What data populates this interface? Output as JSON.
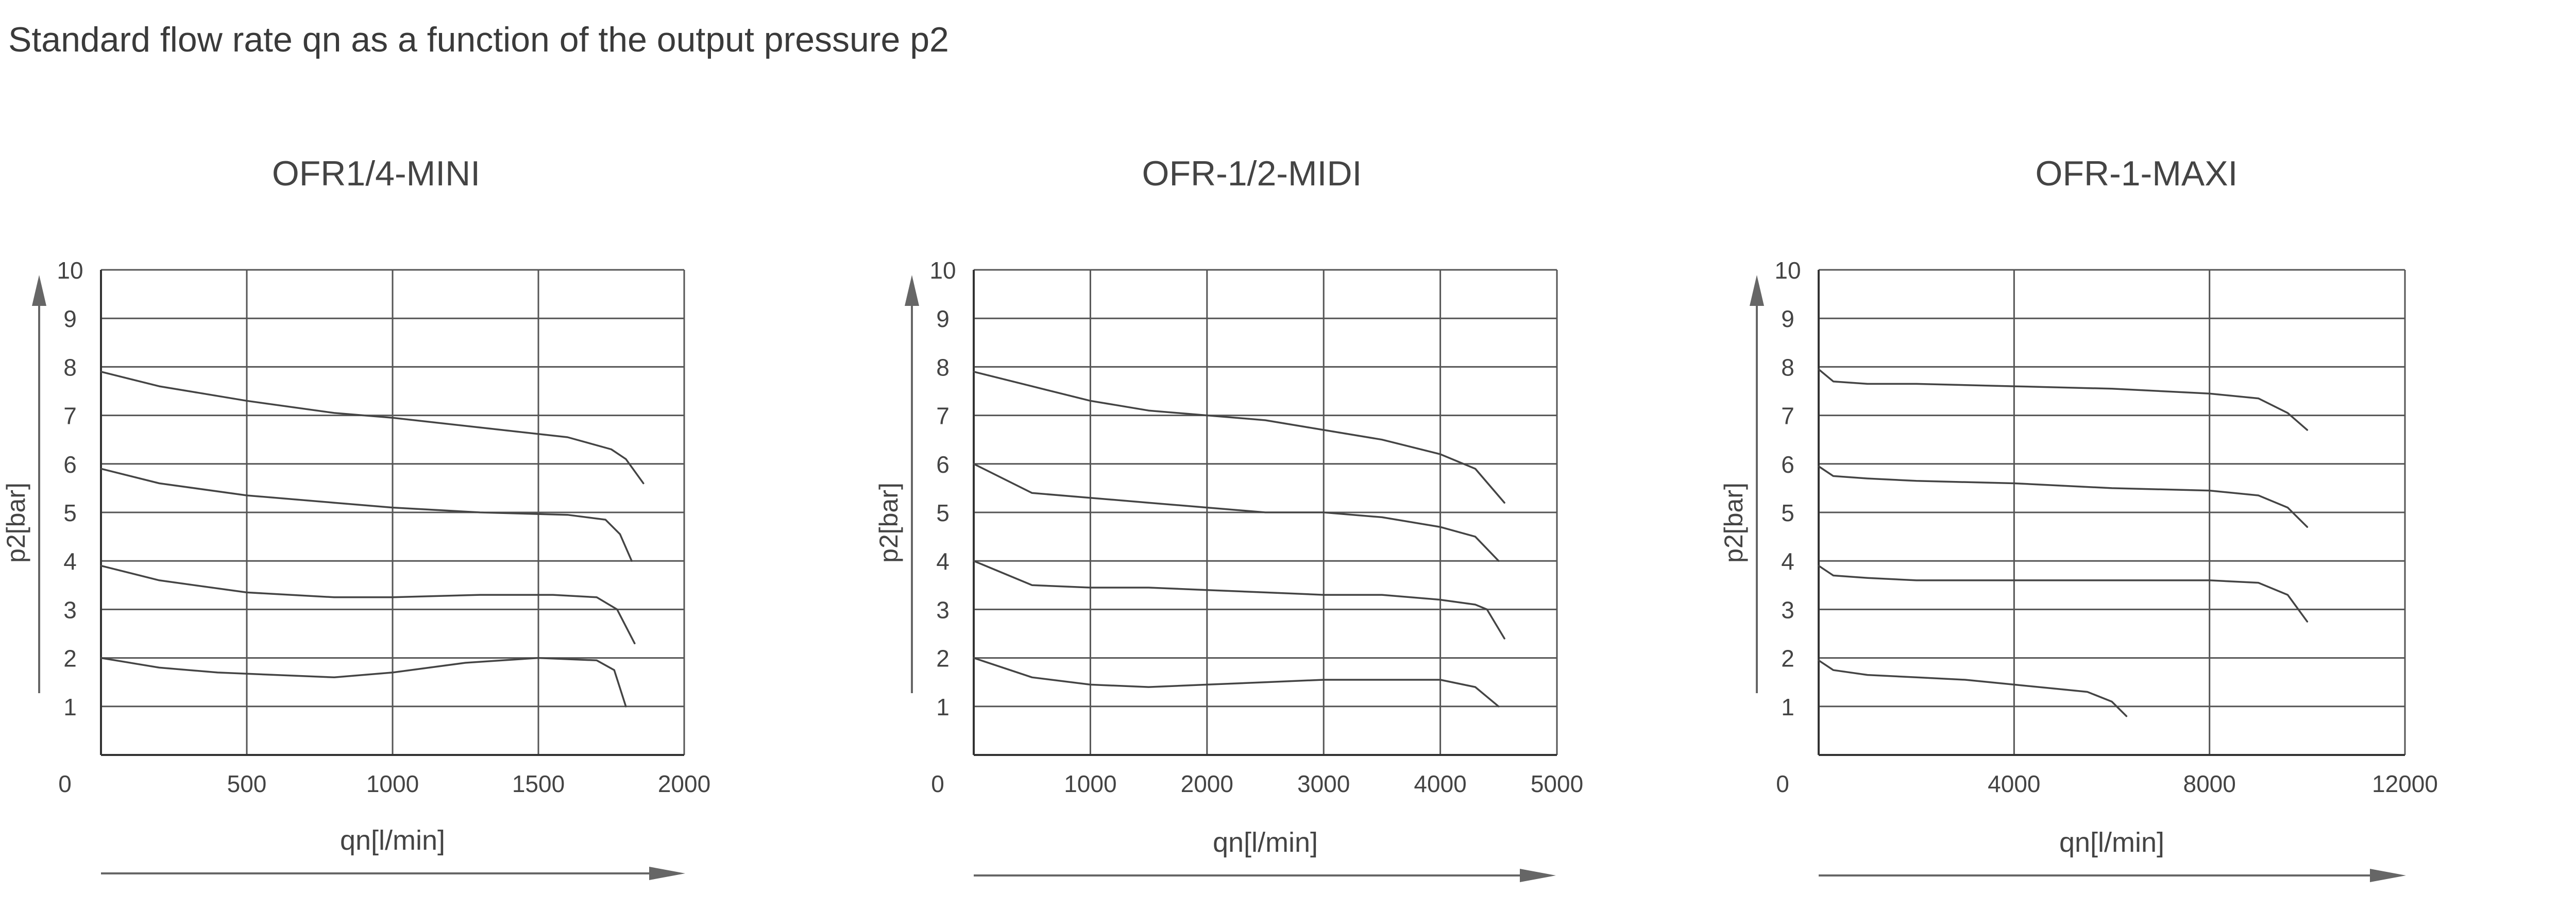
{
  "page": {
    "title": "Standard flow rate qn as a function of the output pressure p2"
  },
  "chart_data": [
    {
      "type": "line",
      "title": "OFR1/4-MINI",
      "xlabel": "qn[l/min]",
      "ylabel": "p2[bar]",
      "xlim": [
        0,
        2000
      ],
      "ylim": [
        0,
        10
      ],
      "x_ticks": [
        0,
        500,
        1000,
        1500,
        2000
      ],
      "x_tick_labels": [
        "0",
        "500",
        "1000",
        "1500",
        "2000"
      ],
      "y_ticks": [
        1,
        2,
        3,
        4,
        5,
        6,
        7,
        8,
        9,
        10
      ],
      "grid": true,
      "series": [
        {
          "x": [
            0,
            200,
            500,
            800,
            1000,
            1300,
            1600,
            1750,
            1800,
            1860
          ],
          "y": [
            7.9,
            7.6,
            7.3,
            7.05,
            6.95,
            6.75,
            6.55,
            6.3,
            6.1,
            5.6
          ]
        },
        {
          "x": [
            0,
            200,
            500,
            800,
            1000,
            1300,
            1600,
            1730,
            1780,
            1820
          ],
          "y": [
            5.9,
            5.6,
            5.35,
            5.2,
            5.1,
            5.0,
            4.95,
            4.85,
            4.55,
            4.0
          ]
        },
        {
          "x": [
            0,
            200,
            500,
            800,
            1000,
            1300,
            1550,
            1700,
            1770,
            1830
          ],
          "y": [
            3.9,
            3.6,
            3.35,
            3.25,
            3.25,
            3.3,
            3.3,
            3.25,
            3.0,
            2.3
          ]
        },
        {
          "x": [
            0,
            200,
            400,
            600,
            800,
            1000,
            1250,
            1500,
            1700,
            1760,
            1800
          ],
          "y": [
            2.0,
            1.8,
            1.7,
            1.65,
            1.6,
            1.7,
            1.9,
            2.0,
            1.95,
            1.75,
            1.0
          ]
        }
      ]
    },
    {
      "type": "line",
      "title": "OFR-1/2-MIDI",
      "xlabel": "qn[l/min]",
      "ylabel": "p2[bar]",
      "xlim": [
        0,
        5000
      ],
      "ylim": [
        0,
        10
      ],
      "x_ticks": [
        0,
        1000,
        2000,
        3000,
        4000,
        5000
      ],
      "x_tick_labels": [
        "0",
        "1000",
        "2000",
        "3000",
        "4000",
        "5000"
      ],
      "y_ticks": [
        1,
        2,
        3,
        4,
        5,
        6,
        7,
        8,
        9,
        10
      ],
      "grid": true,
      "series": [
        {
          "x": [
            0,
            500,
            1000,
            1500,
            2000,
            2500,
            3000,
            3500,
            4000,
            4300,
            4550
          ],
          "y": [
            7.9,
            7.6,
            7.3,
            7.1,
            7.0,
            6.9,
            6.7,
            6.5,
            6.2,
            5.9,
            5.2
          ]
        },
        {
          "x": [
            0,
            500,
            1000,
            1500,
            2000,
            2500,
            3000,
            3500,
            4000,
            4300,
            4500
          ],
          "y": [
            6.0,
            5.4,
            5.3,
            5.2,
            5.1,
            5.0,
            5.0,
            4.9,
            4.7,
            4.5,
            4.0
          ]
        },
        {
          "x": [
            0,
            500,
            1000,
            1500,
            2000,
            2500,
            3000,
            3500,
            4000,
            4300,
            4400,
            4550
          ],
          "y": [
            4.0,
            3.5,
            3.45,
            3.45,
            3.4,
            3.35,
            3.3,
            3.3,
            3.2,
            3.1,
            3.0,
            2.4
          ]
        },
        {
          "x": [
            0,
            500,
            1000,
            1500,
            2000,
            2500,
            3000,
            3500,
            4000,
            4300,
            4500
          ],
          "y": [
            2.0,
            1.6,
            1.45,
            1.4,
            1.45,
            1.5,
            1.55,
            1.55,
            1.55,
            1.4,
            1.0
          ]
        }
      ]
    },
    {
      "type": "line",
      "title": "OFR-1-MAXI",
      "xlabel": "qn[l/min]",
      "ylabel": "p2[bar]",
      "xlim": [
        0,
        12000
      ],
      "ylim": [
        0,
        10
      ],
      "x_ticks": [
        0,
        4000,
        8000,
        12000
      ],
      "x_tick_labels": [
        "0",
        "4000",
        "8000",
        "12000"
      ],
      "y_ticks": [
        1,
        2,
        3,
        4,
        5,
        6,
        7,
        8,
        9,
        10
      ],
      "grid": true,
      "series": [
        {
          "x": [
            0,
            300,
            1000,
            2000,
            4000,
            6000,
            8000,
            9000,
            9600,
            10000
          ],
          "y": [
            7.95,
            7.7,
            7.65,
            7.65,
            7.6,
            7.55,
            7.45,
            7.35,
            7.05,
            6.7
          ]
        },
        {
          "x": [
            0,
            300,
            1000,
            2000,
            4000,
            6000,
            8000,
            9000,
            9600,
            10000
          ],
          "y": [
            5.95,
            5.75,
            5.7,
            5.65,
            5.6,
            5.5,
            5.45,
            5.35,
            5.1,
            4.7
          ]
        },
        {
          "x": [
            0,
            300,
            1000,
            2000,
            4000,
            6000,
            8000,
            9000,
            9600,
            10000
          ],
          "y": [
            3.9,
            3.7,
            3.65,
            3.6,
            3.6,
            3.6,
            3.6,
            3.55,
            3.3,
            2.75
          ]
        },
        {
          "x": [
            0,
            300,
            1000,
            2000,
            3000,
            4000,
            5000,
            5500,
            6000,
            6300
          ],
          "y": [
            1.95,
            1.75,
            1.65,
            1.6,
            1.55,
            1.45,
            1.35,
            1.3,
            1.1,
            0.8
          ]
        }
      ]
    }
  ]
}
